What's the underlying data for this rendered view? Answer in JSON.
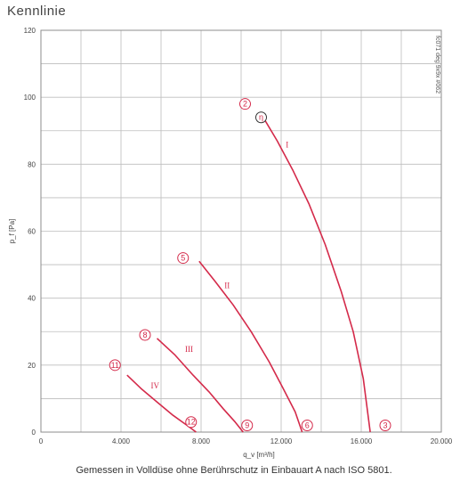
{
  "heading": "Kennlinie",
  "caption": "Gemessen in Volldüse ohne Berührschutz in Einbauart A nach ISO 5801.",
  "colors": {
    "curve": "#d42a4a",
    "grid": "#bdbdbd",
    "frame": "#8c8c8c"
  },
  "chart_data": {
    "type": "line",
    "xlabel": "q_v [m³/h]",
    "ylabel": "p_f [Pa]",
    "xlim": [
      0,
      20000
    ],
    "ylim": [
      0,
      120
    ],
    "x_ticks": [
      0,
      2000,
      4000,
      6000,
      8000,
      10000,
      12000,
      14000,
      16000,
      18000,
      20000
    ],
    "x_tick_labels": [
      "0",
      "",
      "4.000",
      "",
      "8.000",
      "",
      "12.000",
      "",
      "16.000",
      "",
      "20.000"
    ],
    "y_ticks": [
      0,
      10,
      20,
      30,
      40,
      50,
      60,
      70,
      80,
      90,
      100,
      110,
      120
    ],
    "y_tick_labels": [
      "0",
      "",
      "20",
      "",
      "40",
      "",
      "60",
      "",
      "80",
      "",
      "100",
      "",
      "120"
    ],
    "grid": true,
    "legend": "none",
    "side_note": "fc071 deg 9x9x #062",
    "series": [
      {
        "name": "I",
        "x": [
          11100,
          11800,
          12600,
          13400,
          14200,
          15000,
          15600,
          16100,
          16450
        ],
        "y": [
          94,
          87,
          78,
          68,
          56,
          42,
          30,
          16,
          0
        ]
      },
      {
        "name": "II",
        "x": [
          7900,
          8700,
          9600,
          10500,
          11400,
          12100,
          12700,
          13050
        ],
        "y": [
          51,
          45,
          38,
          30,
          21,
          13,
          6,
          0
        ]
      },
      {
        "name": "III",
        "x": [
          5800,
          6700,
          7600,
          8400,
          9100,
          9700,
          10100
        ],
        "y": [
          28,
          23,
          17,
          12,
          7,
          3,
          0
        ]
      },
      {
        "name": "IV",
        "x": [
          4300,
          5000,
          5800,
          6600,
          7300,
          7750
        ],
        "y": [
          17,
          13,
          9,
          5,
          2,
          0
        ]
      }
    ],
    "operating_points": [
      {
        "label": "2",
        "x": 10200,
        "y": 98
      },
      {
        "label": "η",
        "x": 11000,
        "y": 94
      },
      {
        "label": "3",
        "x": 17200,
        "y": 2
      },
      {
        "label": "5",
        "x": 7100,
        "y": 52
      },
      {
        "label": "6",
        "x": 13300,
        "y": 2
      },
      {
        "label": "8",
        "x": 5200,
        "y": 29
      },
      {
        "label": "9",
        "x": 10300,
        "y": 2
      },
      {
        "label": "11",
        "x": 3700,
        "y": 20
      },
      {
        "label": "12",
        "x": 7500,
        "y": 3
      }
    ],
    "curve_labels": [
      {
        "text": "I",
        "x": 12300,
        "y": 85
      },
      {
        "text": "II",
        "x": 9300,
        "y": 43
      },
      {
        "text": "III",
        "x": 7400,
        "y": 24
      },
      {
        "text": "IV",
        "x": 5700,
        "y": 13
      }
    ]
  }
}
